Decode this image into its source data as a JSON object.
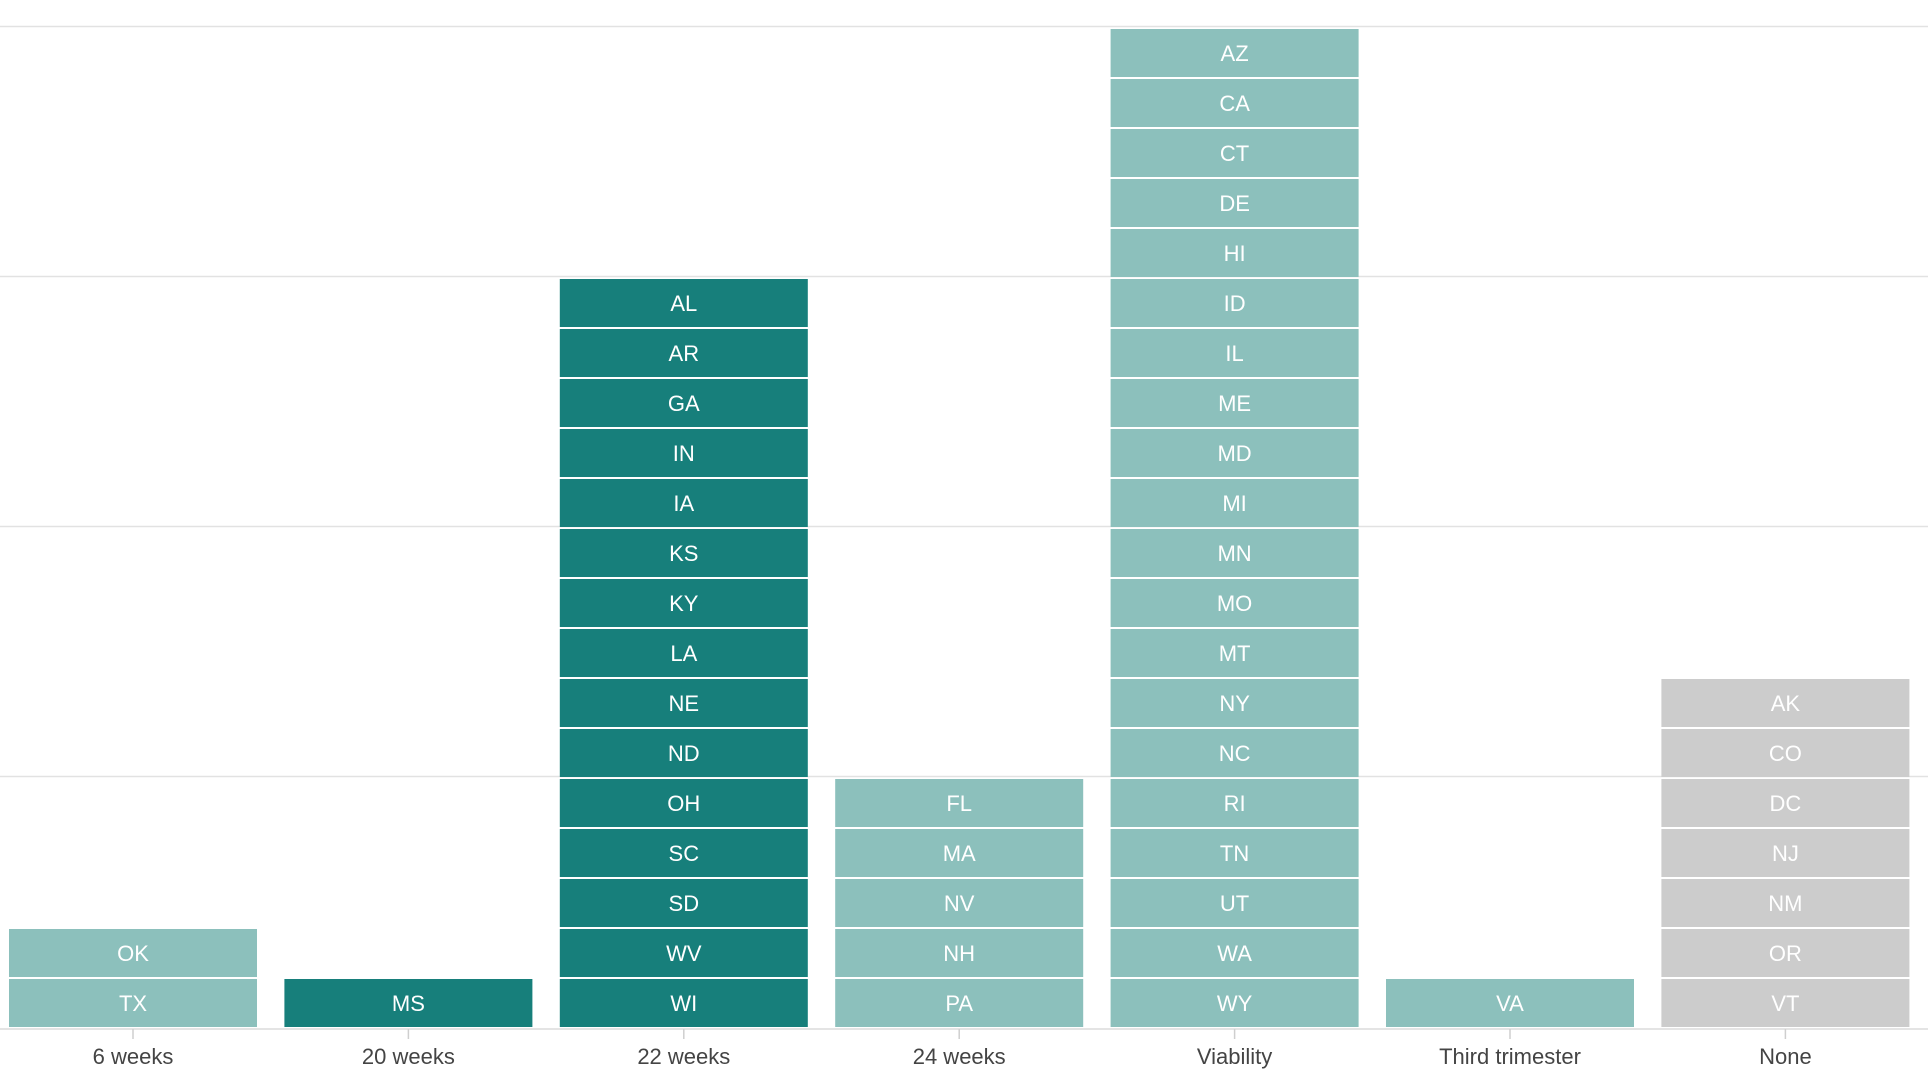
{
  "chart_data": {
    "type": "bar",
    "subtype": "stacked-tile",
    "categories": [
      "6 weeks",
      "20 weeks",
      "22 weeks",
      "24 weeks",
      "Viability",
      "Third trimester",
      "None"
    ],
    "values": [
      2,
      1,
      15,
      5,
      20,
      1,
      7
    ],
    "stacks": [
      {
        "category": "6 weeks",
        "color": "#8cc0bc",
        "items": [
          "TX",
          "OK"
        ]
      },
      {
        "category": "20 weeks",
        "color": "#177f7b",
        "items": [
          "MS"
        ]
      },
      {
        "category": "22 weeks",
        "color": "#177f7b",
        "items": [
          "WI",
          "WV",
          "SD",
          "SC",
          "OH",
          "ND",
          "NE",
          "LA",
          "KY",
          "KS",
          "IA",
          "IN",
          "GA",
          "AR",
          "AL"
        ]
      },
      {
        "category": "24 weeks",
        "color": "#8cc0bc",
        "items": [
          "PA",
          "NH",
          "NV",
          "MA",
          "FL"
        ]
      },
      {
        "category": "Viability",
        "color": "#8cc0bc",
        "items": [
          "WY",
          "WA",
          "UT",
          "TN",
          "RI",
          "NC",
          "NY",
          "MT",
          "MO",
          "MN",
          "MI",
          "MD",
          "ME",
          "IL",
          "ID",
          "HI",
          "DE",
          "CT",
          "CA",
          "AZ"
        ]
      },
      {
        "category": "Third trimester",
        "color": "#8cc0bc",
        "items": [
          "VA"
        ]
      },
      {
        "category": "None",
        "color": "#cccccc",
        "items": [
          "VT",
          "OR",
          "NM",
          "NJ",
          "DC",
          "CO",
          "AK"
        ]
      }
    ],
    "ylim": [
      0,
      20
    ],
    "gridlines": [
      5,
      10,
      15,
      20
    ],
    "grid": true,
    "title": "",
    "xlabel": "",
    "ylabel": "",
    "legend": "none"
  }
}
